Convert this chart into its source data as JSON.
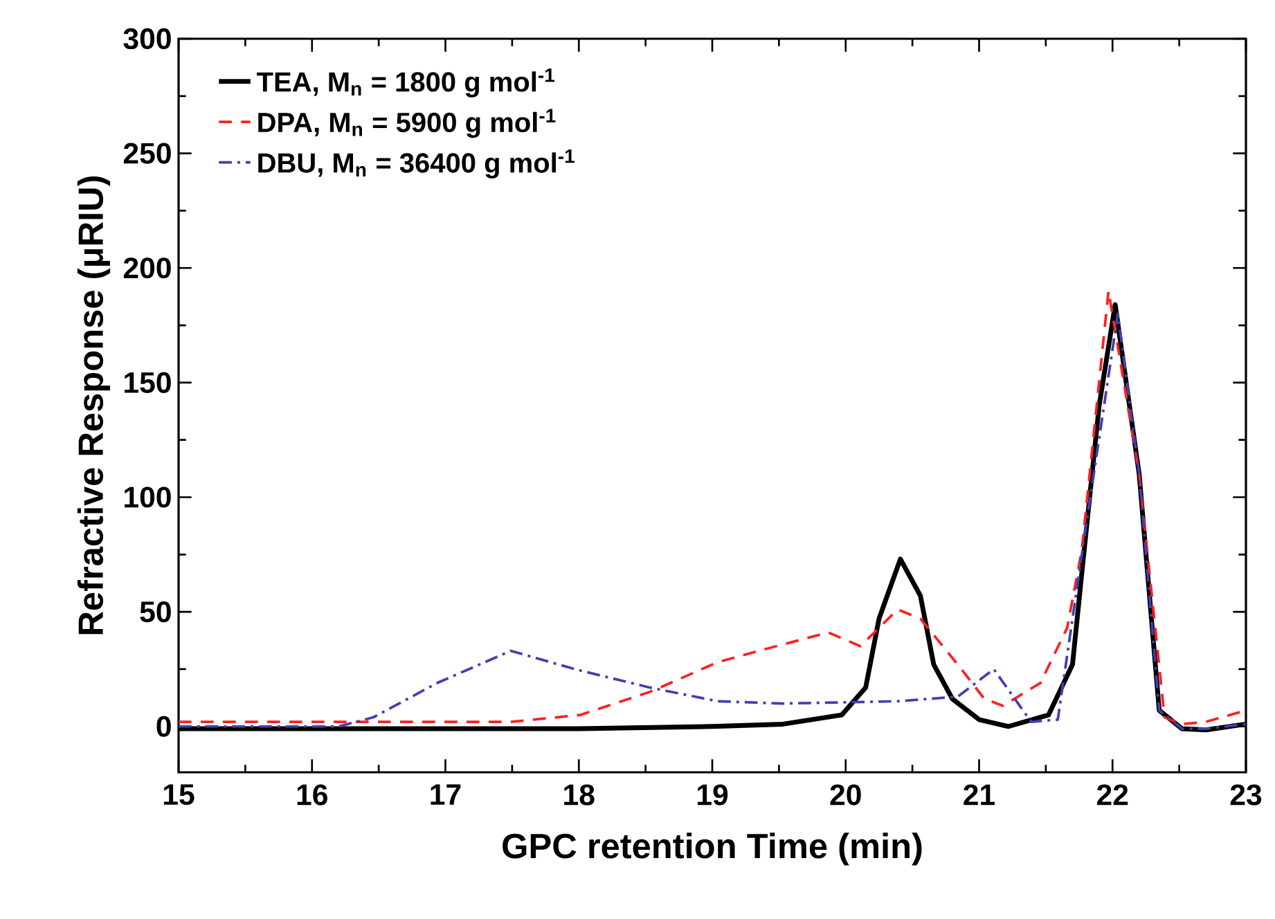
{
  "chart_data": {
    "type": "line",
    "xlabel": "GPC retention Time (min)",
    "ylabel": "Refractive Response (μRIU)",
    "xlim": [
      15,
      23
    ],
    "ylim": [
      -20,
      300
    ],
    "xticks": [
      15,
      16,
      17,
      18,
      19,
      20,
      21,
      22,
      23
    ],
    "yticks": [
      0,
      50,
      100,
      150,
      200,
      250,
      300
    ],
    "grid": false,
    "legend": "top left",
    "marker": "none",
    "series": [
      {
        "name": "TEA, M$_{n}$ =   1800 g mol$^{-1}$",
        "color": "#000000",
        "line_style": "solid",
        "x": [
          15,
          18,
          19,
          19.53,
          19.97,
          20.15,
          20.25,
          20.41,
          20.56,
          20.66,
          20.8,
          21.0,
          21.22,
          21.52,
          21.7,
          21.77,
          21.9,
          22.02,
          22.2,
          22.35,
          22.52,
          22.7,
          23
        ],
        "values": [
          -1,
          -1,
          0,
          1,
          5,
          17,
          47,
          73,
          57,
          27,
          12,
          3,
          0,
          5,
          27,
          67,
          140,
          184,
          110,
          7,
          -1,
          -1.5,
          1
        ]
      },
      {
        "name": "DPA, M$_{n}$ =   5900 g mol$^{-1}$",
        "color": "#ff2020",
        "line_style": "dashed",
        "x": [
          15,
          16.5,
          17.49,
          18.01,
          18.53,
          19.04,
          19.35,
          19.87,
          20.11,
          20.39,
          20.56,
          20.84,
          21.04,
          21.18,
          21.46,
          21.66,
          21.77,
          21.97,
          22.2,
          22.39,
          22.52,
          22.7,
          23
        ],
        "values": [
          2,
          2,
          2,
          5,
          15,
          28,
          33,
          41,
          35,
          51,
          47,
          27,
          12,
          9,
          19,
          43,
          77,
          190,
          110,
          4,
          1,
          2,
          7
        ]
      },
      {
        "name": "DBU, M$_{n}$ = 36400 g mol$^{-1}$",
        "color": "#4040b0",
        "line_style": "dashdot",
        "x": [
          15,
          16.2,
          16.46,
          16.94,
          17.49,
          17.97,
          18.53,
          19.04,
          19.53,
          20.39,
          20.84,
          21.11,
          21.39,
          21.59,
          21.8,
          22.04,
          22.2,
          22.35,
          22.52,
          22.7,
          23
        ],
        "values": [
          0,
          0,
          4,
          19,
          33,
          25,
          17,
          11,
          10,
          11,
          13,
          25,
          2,
          3,
          87,
          180,
          110,
          7,
          -1,
          -1,
          1
        ]
      }
    ]
  }
}
